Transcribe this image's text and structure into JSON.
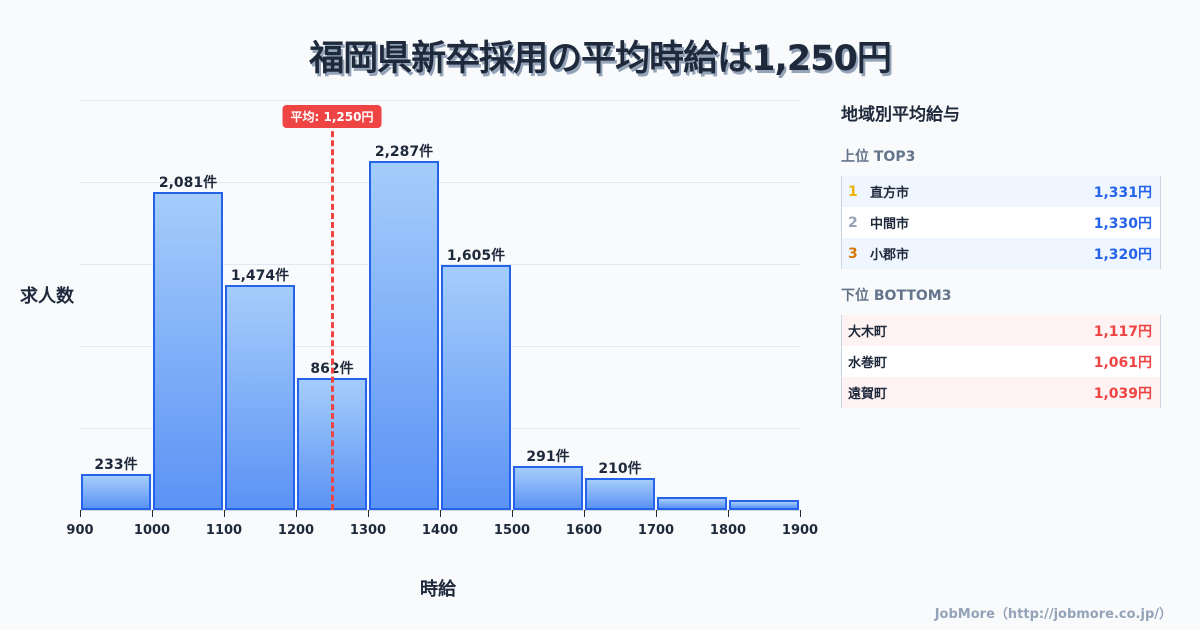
{
  "header": {
    "title": "福岡県新卒採用の平均時給は1,250円"
  },
  "chart_data": {
    "type": "bar",
    "subtype": "histogram",
    "title": "福岡県新卒採用の平均時給は1,250円",
    "xlabel": "時給",
    "ylabel": "求人数",
    "bin_edges": [
      900,
      1000,
      1100,
      1200,
      1300,
      1400,
      1500,
      1600,
      1700,
      1800,
      1900
    ],
    "categories": [
      "900-1000",
      "1000-1100",
      "1100-1200",
      "1200-1300",
      "1300-1400",
      "1400-1500",
      "1500-1600",
      "1600-1700",
      "1700-1800",
      "1800-1900"
    ],
    "values": [
      233,
      2081,
      1474,
      862,
      2287,
      1605,
      291,
      210,
      85,
      65
    ],
    "value_labels": [
      "233件",
      "2,081件",
      "1,474件",
      "862件",
      "2,287件",
      "1,605件",
      "291件",
      "210件",
      "",
      ""
    ],
    "x_ticks": [
      "900",
      "1000",
      "1100",
      "1200",
      "1300",
      "1400",
      "1500",
      "1600",
      "1700",
      "1800",
      "1900"
    ],
    "xlim": [
      900,
      1900
    ],
    "grid": true,
    "mean_line": {
      "value": 1250,
      "label": "平均: 1,250円",
      "color": "#ef4444"
    },
    "bar_color": "#60a5fa",
    "bar_border_color": "#2563eb"
  },
  "axes": {
    "x_label": "時給",
    "y_label": "求人数"
  },
  "panel": {
    "title": "地域別平均給与",
    "top": {
      "title": "上位 TOP3",
      "rows": [
        {
          "rank": "1",
          "name": "直方市",
          "value": "1,331円",
          "rank_color": "#eab308"
        },
        {
          "rank": "2",
          "name": "中間市",
          "value": "1,330円",
          "rank_color": "#94a3b8"
        },
        {
          "rank": "3",
          "name": "小郡市",
          "value": "1,320円",
          "rank_color": "#d97706"
        }
      ]
    },
    "bottom": {
      "title": "下位 BOTTOM3",
      "rows": [
        {
          "name": "大木町",
          "value": "1,117円"
        },
        {
          "name": "水巻町",
          "value": "1,061円"
        },
        {
          "name": "遠賀町",
          "value": "1,039円"
        }
      ]
    }
  },
  "footer": {
    "credit": "JobMore（http://jobmore.co.jp/）"
  }
}
